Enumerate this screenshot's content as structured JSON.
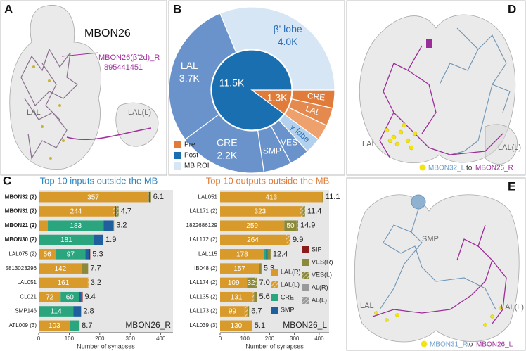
{
  "panels": {
    "a": {
      "label": "A",
      "title": "MBON26",
      "neuron": "MBON26(β'2d)_R",
      "body_id": "895441451",
      "left_label": "LAL",
      "right_label": "LAL(L)"
    },
    "d": {
      "label": "D",
      "left_label": "LAL",
      "right_label": "LAL(L)",
      "from": "MBON32_L",
      "to": "to",
      "target": "MBON26_R"
    },
    "e": {
      "label": "E",
      "smp_label": "SMP",
      "left_label": "LAL",
      "right_label": "LAL(L)",
      "from": "MBON31_R",
      "to": "to",
      "target": "MBON26_L"
    }
  },
  "chart_data": [
    {
      "type": "donut",
      "panel_label": "B",
      "inner": {
        "categories": [
          "Pre",
          "Post"
        ],
        "values": [
          1300,
          11500
        ],
        "value_labels": [
          "1.3K",
          "11.5K"
        ],
        "colors": [
          "#e07b39",
          "#1a6fb0"
        ]
      },
      "outer": {
        "categories": [
          "CRE",
          "LAL",
          null,
          "γ lobe",
          "VES",
          "SMP",
          "CRE",
          "LAL",
          "β' lobe"
        ],
        "values": [
          450,
          450,
          400,
          400,
          500,
          700,
          2200,
          3700,
          4000
        ],
        "value_labels": [
          null,
          null,
          null,
          null,
          null,
          null,
          "2.2K",
          "3.7K",
          "4.0K"
        ],
        "colors": [
          "#e07b39",
          "#e58a4e",
          "#eea06d",
          "#b3d0ec",
          "#6a93cc",
          "#6a93cc",
          "#6a93cc",
          "#6a93cc",
          "#d6e6f5"
        ]
      },
      "extra_legend": {
        "name": "MB ROI",
        "color": "#d6e6f5"
      }
    },
    {
      "type": "stacked_barh",
      "panel_label": "C",
      "xlim": [
        0,
        440
      ],
      "xticks": [
        0,
        100,
        200,
        300,
        400
      ],
      "series": [
        {
          "name": "LAL(R)",
          "color": "#d89a2b",
          "hatch": false
        },
        {
          "name": "LAL(L)",
          "color": "#d89a2b",
          "hatch": true
        },
        {
          "name": "CRE",
          "color": "#2aa57e",
          "hatch": false
        },
        {
          "name": "SMP",
          "color": "#1f5f9e",
          "hatch": false
        },
        {
          "name": "SIP",
          "color": "#8b1c1c",
          "hatch": false
        },
        {
          "name": "VES(R)",
          "color": "#8c8a3a",
          "hatch": false
        },
        {
          "name": "VES(L)",
          "color": "#8c8a3a",
          "hatch": true
        },
        {
          "name": "AL(R)",
          "color": "#9a9a9a",
          "hatch": false
        },
        {
          "name": "AL(L)",
          "color": "#9a9a9a",
          "hatch": true
        }
      ],
      "panels": [
        {
          "title": "Top 10 inputs outside the MB",
          "title_color": "#2e86c1",
          "corner_label": "MBON26_R",
          "xlabel": "Number of synapses",
          "categories": [
            "MBON32 (2)",
            "MBON31 (2)",
            "MBON21 (2)",
            "MBON30 (2)",
            "LAL075 (2)",
            "5813023296",
            "LAL051",
            "CL021",
            "SMP146",
            "ATL009 (3)"
          ],
          "bold": [
            true,
            true,
            true,
            true,
            false,
            false,
            false,
            false,
            false,
            false
          ],
          "totals": [
            "6.1",
            "4.7",
            "3.2",
            "1.9",
            "5.3",
            "7.7",
            "3.2",
            "9.4",
            "2.8",
            "8.7"
          ],
          "values": [
            [
              357,
              244,
              30,
              0,
              56,
              142,
              161,
              72,
              0,
              103
            ],
            [
              4,
              6,
              0,
              0,
              0,
              0,
              2,
              0,
              0,
              0
            ],
            [
              0,
              0,
              183,
              181,
              97,
              0,
              0,
              60,
              114,
              31
            ],
            [
              5,
              4,
              30,
              31,
              12,
              0,
              0,
              8,
              25,
              0
            ],
            [
              0,
              0,
              0,
              0,
              4,
              0,
              0,
              4,
              0,
              0
            ],
            [
              2,
              0,
              4,
              0,
              0,
              20,
              0,
              0,
              0,
              0
            ],
            [
              0,
              8,
              0,
              0,
              0,
              0,
              0,
              0,
              0,
              0
            ],
            [
              0,
              0,
              0,
              0,
              0,
              0,
              0,
              0,
              0,
              0
            ],
            [
              0,
              0,
              0,
              0,
              0,
              0,
              0,
              0,
              0,
              0
            ]
          ]
        },
        {
          "title": "Top 10 outputs outside the MB",
          "title_color": "#e07b39",
          "corner_label": "MBON26_L",
          "xlabel": "Number of synapses",
          "categories": [
            "LAL051",
            "LAL171 (2)",
            "1822686129",
            "LAL172 (2)",
            "LAL115",
            "IB048 (2)",
            "LAL174 (2)",
            "LAL135 (2)",
            "LAL173 (2)",
            "LAL039 (3)"
          ],
          "bold": [
            false,
            false,
            false,
            false,
            false,
            false,
            false,
            false,
            false,
            false
          ],
          "totals": [
            "11.1",
            "11.4",
            "14.9",
            "9.9",
            "12.4",
            "5.3",
            "7.0",
            "5.6",
            "6.7",
            "5.1"
          ],
          "values": [
            [
              413,
              323,
              259,
              264,
              178,
              157,
              109,
              131,
              99,
              130
            ],
            [
              0,
              10,
              0,
              20,
              0,
              0,
              0,
              6,
              14,
              0
            ],
            [
              0,
              0,
              0,
              0,
              8,
              0,
              0,
              0,
              0,
              0
            ],
            [
              0,
              0,
              0,
              0,
              6,
              0,
              0,
              0,
              0,
              0
            ],
            [
              0,
              0,
              0,
              0,
              0,
              0,
              0,
              0,
              0,
              0
            ],
            [
              4,
              0,
              50,
              0,
              12,
              10,
              32,
              12,
              4,
              0
            ],
            [
              0,
              10,
              6,
              0,
              0,
              0,
              8,
              0,
              0,
              0
            ],
            [
              0,
              0,
              0,
              0,
              0,
              0,
              0,
              0,
              0,
              0
            ],
            [
              0,
              0,
              0,
              0,
              0,
              0,
              0,
              0,
              0,
              0
            ]
          ]
        }
      ]
    }
  ]
}
